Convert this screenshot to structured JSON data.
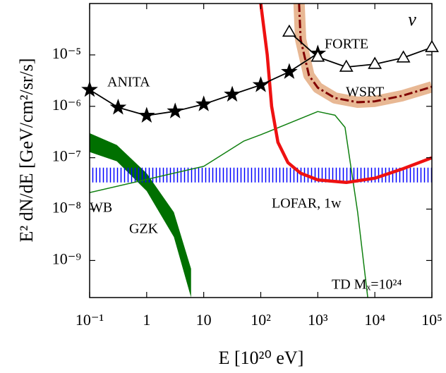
{
  "chart_data": {
    "type": "line",
    "xlabel": "E [10²⁰ eV]",
    "ylabel": "E² dN/dE [GeV/cm²/sr/s]",
    "annotation": "ν",
    "xscale": "log",
    "yscale": "log",
    "xlim": [
      0.1,
      100000
    ],
    "ylim": [
      1.9e-10,
      0.0001
    ],
    "xticks": [
      {
        "value": 0.1,
        "label": "10⁻¹"
      },
      1,
      10,
      {
        "value": 100,
        "label": "10²"
      },
      {
        "value": 1000,
        "label": "10³"
      },
      {
        "value": 10000,
        "label": "10⁴"
      },
      {
        "value": 100000,
        "label": "10⁵"
      }
    ],
    "yticks": [
      {
        "value": 1e-09,
        "label": "10⁻⁹"
      },
      {
        "value": 1e-08,
        "label": "10⁻⁸"
      },
      {
        "value": 1e-07,
        "label": "10⁻⁷"
      },
      {
        "value": 1e-06,
        "label": "10⁻⁶"
      },
      {
        "value": 1e-05,
        "label": "10⁻⁵"
      }
    ],
    "series": [
      {
        "name": "GZK",
        "kind": "area",
        "color": "#007000",
        "x": [
          0.1,
          0.3,
          1,
          3,
          6
        ],
        "upper": [
          3e-07,
          1.77e-07,
          4.97e-08,
          8.7e-09,
          6.9e-10
        ],
        "lower": [
          1.29e-07,
          8.5e-08,
          2.25e-08,
          2.86e-09,
          1.9e-10
        ]
      },
      {
        "name": "WB",
        "kind": "hatch",
        "color": "#0000ff",
        "lower": 3.3e-08,
        "upper": 6.4e-08
      },
      {
        "name": "TD Mₓ=10²⁴",
        "kind": "line",
        "line": "thin",
        "color": "#108010",
        "x": [
          0.1,
          10,
          50,
          100,
          1000,
          2000,
          3000,
          5000,
          7500
        ],
        "values": [
          2.1e-08,
          6.8e-08,
          2.1e-07,
          2.8e-07,
          7.9e-07,
          6.7e-07,
          3.9e-07,
          8.7e-09,
          1.9e-10
        ]
      },
      {
        "name": "WSRT",
        "kind": "line",
        "line": "dashdot",
        "color": "#800000",
        "band_color": "#e8b894",
        "x": [
          470,
          500,
          700,
          1000,
          2000,
          5000,
          10000,
          30000,
          100000
        ],
        "values": [
          0.0001,
          2e-05,
          4e-06,
          2.3e-06,
          1.45e-06,
          1.2e-06,
          1.25e-06,
          1.6e-06,
          2.4e-06
        ]
      },
      {
        "name": "LOFAR, 1w",
        "kind": "line",
        "line": "thick",
        "color": "#ee1111",
        "x": [
          100,
          130,
          155,
          200,
          300,
          500,
          1000,
          3162,
          10000,
          30000,
          100000
        ],
        "values": [
          0.0001,
          1e-05,
          1e-06,
          2e-07,
          8e-08,
          5e-08,
          3.7e-08,
          3.3e-08,
          4e-08,
          6e-08,
          1e-07
        ]
      },
      {
        "name": "ANITA",
        "kind": "line",
        "line": "medium",
        "marker": "star",
        "color": "#000000",
        "x": [
          0.1,
          0.316,
          1,
          3.16,
          10,
          31.6,
          100,
          316,
          1000
        ],
        "values": [
          2.1e-06,
          9.5e-07,
          6.6e-07,
          8e-07,
          1.1e-06,
          1.7e-06,
          2.6e-06,
          4.7e-06,
          1.07e-05
        ]
      },
      {
        "name": "FORTE",
        "kind": "line",
        "line": "medium",
        "marker": "triangle",
        "color": "#000000",
        "x": [
          316,
          1000,
          3162,
          10000,
          31623,
          100000
        ],
        "values": [
          2.8e-05,
          9.1e-06,
          5.8e-06,
          6.6e-06,
          8.8e-06,
          1.4e-05
        ]
      }
    ]
  }
}
